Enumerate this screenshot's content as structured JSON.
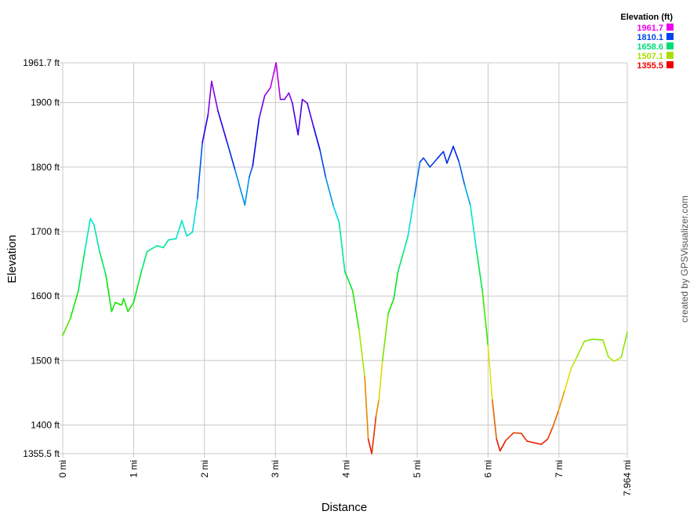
{
  "chart_data": {
    "type": "line",
    "xlabel": "Distance",
    "ylabel": "Elevation",
    "xlim": [
      0,
      7.964
    ],
    "ylim": [
      1355.5,
      1961.7
    ],
    "x_ticks": [
      {
        "value": 0,
        "label": "0 mi"
      },
      {
        "value": 1,
        "label": "1 mi"
      },
      {
        "value": 2,
        "label": "2 mi"
      },
      {
        "value": 3,
        "label": "3 mi"
      },
      {
        "value": 4,
        "label": "4 mi"
      },
      {
        "value": 5,
        "label": "5 mi"
      },
      {
        "value": 6,
        "label": "6 mi"
      },
      {
        "value": 7,
        "label": "7 mi"
      },
      {
        "value": 7.964,
        "label": "7.964 mi"
      }
    ],
    "y_ticks": [
      {
        "value": 1355.5,
        "label": "1355.5 ft"
      },
      {
        "value": 1400,
        "label": "1400 ft"
      },
      {
        "value": 1500,
        "label": "1500 ft"
      },
      {
        "value": 1600,
        "label": "1600 ft"
      },
      {
        "value": 1700,
        "label": "1700 ft"
      },
      {
        "value": 1800,
        "label": "1800 ft"
      },
      {
        "value": 1900,
        "label": "1900 ft"
      },
      {
        "value": 1961.7,
        "label": "1961.7 ft"
      }
    ],
    "grid": true,
    "legend": {
      "title": "Elevation (ft)",
      "placement": "top-right",
      "entries": [
        {
          "label": "1961.7",
          "color": "#ee00ee"
        },
        {
          "label": "1810.1",
          "color": "#0044ee"
        },
        {
          "label": "1658.6",
          "color": "#00dd77"
        },
        {
          "label": "1507.1",
          "color": "#aadd00"
        },
        {
          "label": "1355.5",
          "color": "#ee0000"
        }
      ]
    },
    "color_scale": "elevation gradient red-yellow-green-blue-magenta",
    "credit": "created by GPSVisualizer.com",
    "points": [
      [
        0,
        1539
      ],
      [
        0.11,
        1566
      ],
      [
        0.22,
        1608
      ],
      [
        0.31,
        1669
      ],
      [
        0.39,
        1720
      ],
      [
        0.44,
        1711
      ],
      [
        0.52,
        1669
      ],
      [
        0.61,
        1632
      ],
      [
        0.69,
        1576
      ],
      [
        0.74,
        1590
      ],
      [
        0.83,
        1586
      ],
      [
        0.86,
        1596
      ],
      [
        0.92,
        1576
      ],
      [
        1.0,
        1590
      ],
      [
        1.11,
        1638
      ],
      [
        1.19,
        1669
      ],
      [
        1.33,
        1678
      ],
      [
        1.42,
        1675
      ],
      [
        1.49,
        1687
      ],
      [
        1.6,
        1689
      ],
      [
        1.68,
        1717
      ],
      [
        1.75,
        1693
      ],
      [
        1.83,
        1699
      ],
      [
        1.9,
        1751
      ],
      [
        1.97,
        1838
      ],
      [
        2.05,
        1881
      ],
      [
        2.1,
        1933
      ],
      [
        2.19,
        1887
      ],
      [
        2.32,
        1838
      ],
      [
        2.43,
        1796
      ],
      [
        2.57,
        1741
      ],
      [
        2.63,
        1784
      ],
      [
        2.68,
        1802
      ],
      [
        2.77,
        1875
      ],
      [
        2.85,
        1911
      ],
      [
        2.93,
        1923
      ],
      [
        3.01,
        1961.7
      ],
      [
        3.07,
        1905
      ],
      [
        3.13,
        1905
      ],
      [
        3.19,
        1915
      ],
      [
        3.24,
        1899
      ],
      [
        3.32,
        1850
      ],
      [
        3.38,
        1905
      ],
      [
        3.45,
        1899
      ],
      [
        3.54,
        1862
      ],
      [
        3.63,
        1826
      ],
      [
        3.71,
        1784
      ],
      [
        3.82,
        1739
      ],
      [
        3.9,
        1714
      ],
      [
        3.98,
        1638
      ],
      [
        4.09,
        1608
      ],
      [
        4.18,
        1548
      ],
      [
        4.26,
        1475
      ],
      [
        4.31,
        1378
      ],
      [
        4.36,
        1355.5
      ],
      [
        4.42,
        1414
      ],
      [
        4.46,
        1439
      ],
      [
        4.51,
        1499
      ],
      [
        4.59,
        1572
      ],
      [
        4.67,
        1596
      ],
      [
        4.73,
        1638
      ],
      [
        4.81,
        1669
      ],
      [
        4.87,
        1693
      ],
      [
        4.96,
        1754
      ],
      [
        5.04,
        1808
      ],
      [
        5.09,
        1814
      ],
      [
        5.18,
        1800
      ],
      [
        5.29,
        1814
      ],
      [
        5.37,
        1824
      ],
      [
        5.42,
        1806
      ],
      [
        5.51,
        1832
      ],
      [
        5.59,
        1808
      ],
      [
        5.67,
        1772
      ],
      [
        5.75,
        1741
      ],
      [
        5.84,
        1669
      ],
      [
        5.92,
        1608
      ],
      [
        6.0,
        1523
      ],
      [
        6.06,
        1439
      ],
      [
        6.12,
        1378
      ],
      [
        6.17,
        1360
      ],
      [
        6.25,
        1376
      ],
      [
        6.36,
        1388
      ],
      [
        6.47,
        1387
      ],
      [
        6.55,
        1375
      ],
      [
        6.75,
        1370
      ],
      [
        6.84,
        1378
      ],
      [
        6.91,
        1396
      ],
      [
        6.99,
        1421
      ],
      [
        7.08,
        1453
      ],
      [
        7.17,
        1487
      ],
      [
        7.25,
        1505
      ],
      [
        7.36,
        1530
      ],
      [
        7.47,
        1533
      ],
      [
        7.62,
        1532
      ],
      [
        7.7,
        1505
      ],
      [
        7.78,
        1499
      ],
      [
        7.88,
        1505
      ],
      [
        7.964,
        1544
      ]
    ]
  }
}
